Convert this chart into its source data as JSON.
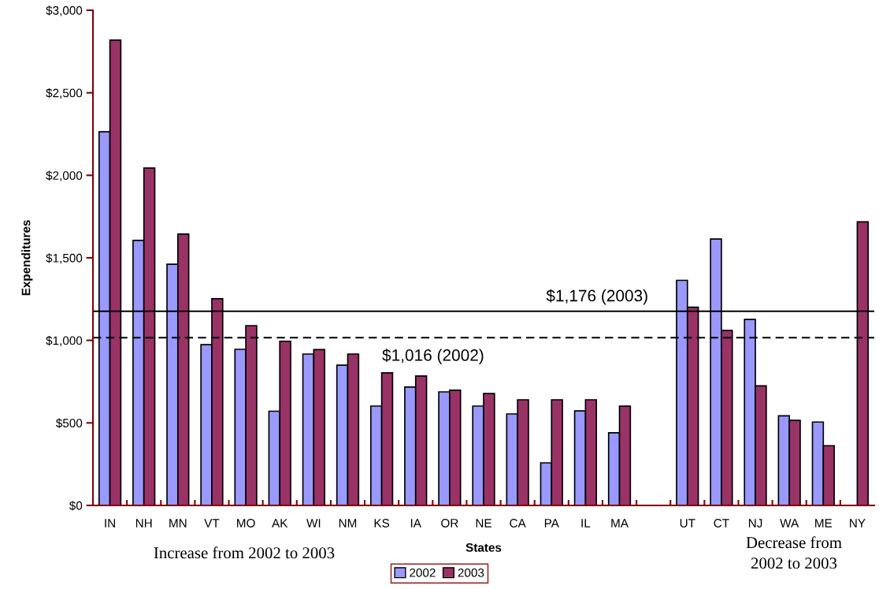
{
  "chart_data": {
    "type": "bar",
    "xlabel": "States",
    "ylabel": "Expenditures",
    "categories": [
      "IN",
      "NH",
      "MN",
      "VT",
      "MO",
      "AK",
      "WI",
      "NM",
      "KS",
      "IA",
      "OR",
      "NE",
      "CA",
      "PA",
      "IL",
      "MA",
      null,
      "UT",
      "CT",
      "NJ",
      "WA",
      "ME",
      "NY"
    ],
    "series": [
      {
        "name": "2002",
        "color": "#9999ff",
        "values": [
          2264,
          1606,
          1461,
          974,
          946,
          571,
          917,
          850,
          602,
          717,
          688,
          602,
          554,
          258,
          573,
          440,
          null,
          1364,
          1614,
          1127,
          543,
          505,
          null
        ]
      },
      {
        "name": "2003",
        "color": "#993366",
        "values": [
          2819,
          2044,
          1644,
          1252,
          1089,
          994,
          944,
          917,
          803,
          784,
          698,
          678,
          640,
          640,
          640,
          601,
          null,
          1201,
          1060,
          724,
          515,
          362,
          1718
        ]
      }
    ],
    "ylim": [
      0,
      3000
    ],
    "yticks": [
      {
        "value": 0,
        "label": "$0"
      },
      {
        "value": 500,
        "label": "$500"
      },
      {
        "value": 1000,
        "label": "$1,000"
      },
      {
        "value": 1500,
        "label": "$1,500"
      },
      {
        "value": 2000,
        "label": "$2,000"
      },
      {
        "value": 2500,
        "label": "$2,500"
      },
      {
        "value": 3000,
        "label": "$3,000"
      }
    ],
    "ref_lines": [
      {
        "axis": "y",
        "value": 1176,
        "label": "$1,176 (2003)",
        "color": "#000000",
        "line_style": "solid"
      },
      {
        "axis": "y",
        "value": 1016,
        "label": "$1,016 (2002)",
        "color": "#000000",
        "line_style": "dashed"
      }
    ],
    "annotations": [
      "Increase from 2002 to 2003",
      "Decrease from\n2002 to 2003"
    ],
    "grid": false,
    "legend": "bottom"
  }
}
